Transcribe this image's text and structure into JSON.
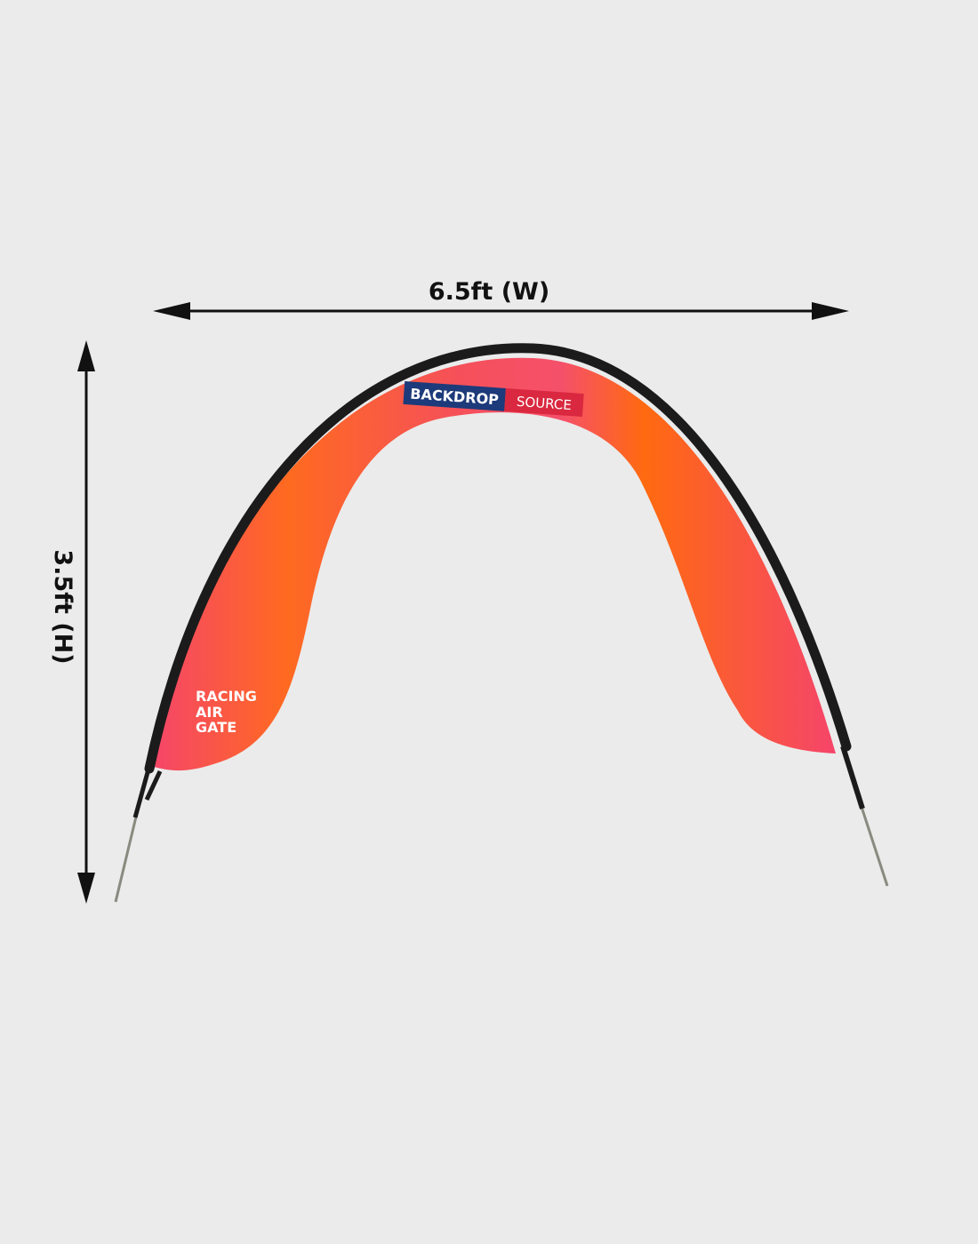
{
  "dimensions": {
    "width_label": "6.5ft (W)",
    "height_label": "3.5ft (H)"
  },
  "product": {
    "logo_part1": "BACKDROP",
    "logo_part2": "SOURCE",
    "name_lines": [
      "RACING",
      "AIR",
      "GATE"
    ]
  },
  "colors": {
    "background": "#ebebeb",
    "fabric_orange": "#ff6a10",
    "fabric_pink": "#f5456a",
    "frame": "#1b1b1b",
    "logo_blue": "#1d3a7a",
    "logo_red": "#d9283f"
  }
}
